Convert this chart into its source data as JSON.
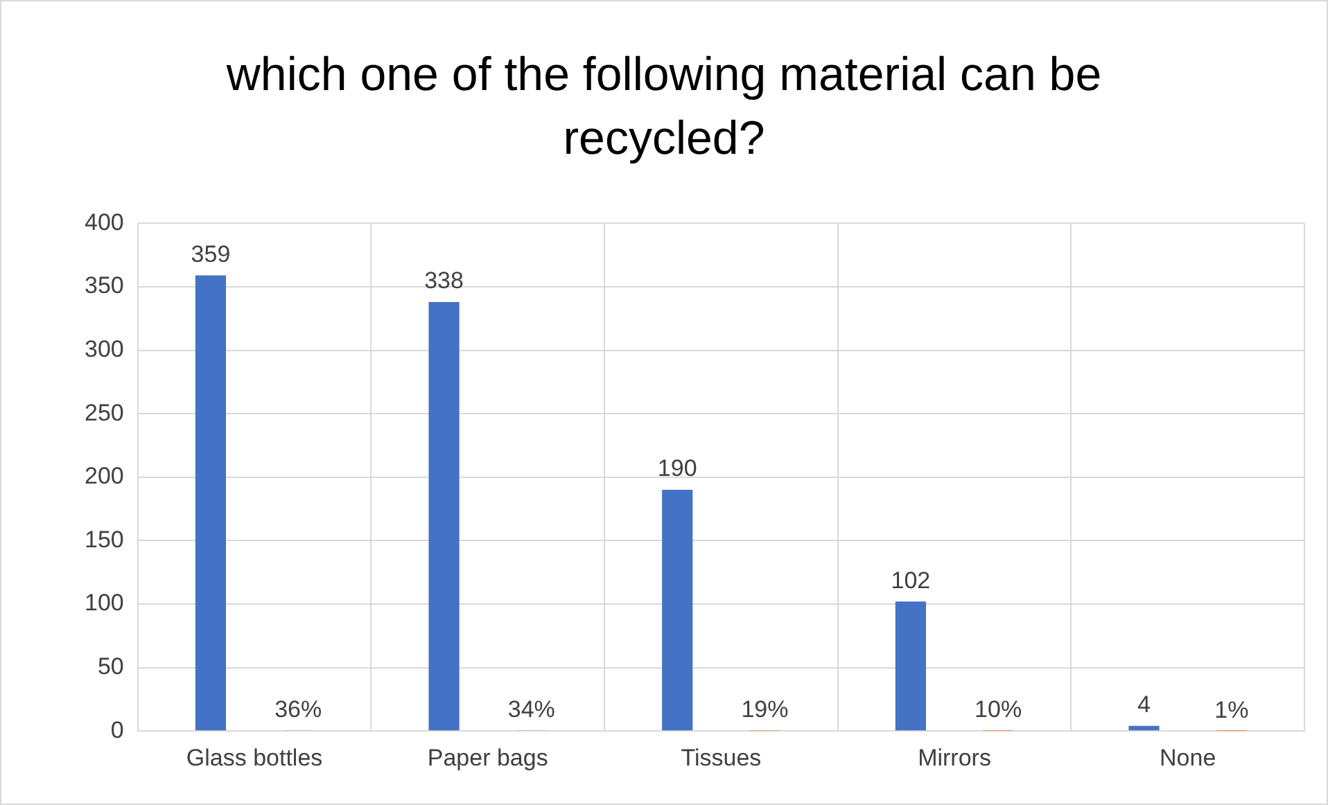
{
  "chart_data": {
    "type": "bar",
    "title": "which one of the following material can be recycled?",
    "categories": [
      "Glass bottles",
      "Paper bags",
      "Tissues",
      "Mirrors",
      "None"
    ],
    "series": [
      {
        "color": "#4472c4",
        "values": [
          359,
          338,
          190,
          102,
          4
        ],
        "value_labels": [
          "359",
          "338",
          "190",
          "102",
          "4"
        ]
      },
      {
        "color": "#ed7d31",
        "values": [
          0.36,
          0.34,
          0.19,
          0.1,
          0.01
        ],
        "value_labels": [
          "36%",
          "34%",
          "19%",
          "10%",
          "1%"
        ]
      }
    ],
    "ylim": [
      0,
      400
    ],
    "yticks": [
      0,
      50,
      100,
      150,
      200,
      250,
      300,
      350,
      400
    ],
    "grid": true,
    "legend": false
  }
}
